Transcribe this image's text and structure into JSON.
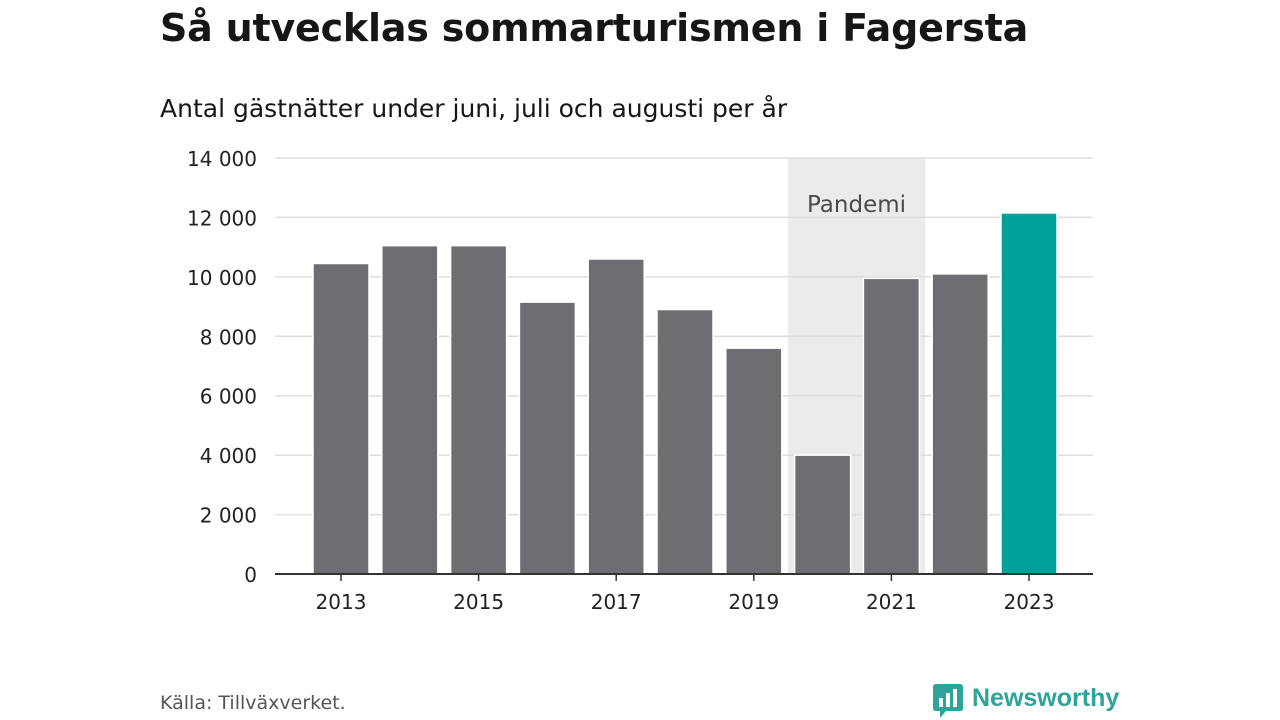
{
  "header": {
    "title": "Så utvecklas sommarturismen i Fagersta",
    "subtitle": "Antal gästnätter under juni, juli och augusti per år"
  },
  "footer": {
    "source": "Källa: Tillväxverket.",
    "brand_name": "Newsworthy",
    "brand_icon": "bar-chart-speech-bubble-icon"
  },
  "colors": {
    "bar_default": "#6e6d72",
    "bar_highlight": "#00a19a",
    "pandemic_band": "#ebebeb",
    "gridline": "#dddddd",
    "axis": "#333333",
    "brand": "#2ea39a"
  },
  "chart_data": {
    "type": "bar",
    "title": "Så utvecklas sommarturismen i Fagersta",
    "subtitle": "Antal gästnätter under juni, juli och augusti per år",
    "xlabel": "",
    "ylabel": "",
    "categories": [
      "2013",
      "2014",
      "2015",
      "2016",
      "2017",
      "2018",
      "2019",
      "2020",
      "2021",
      "2022",
      "2023"
    ],
    "values": [
      10450,
      11050,
      11050,
      9150,
      10600,
      8900,
      7600,
      4000,
      9950,
      10100,
      12150
    ],
    "highlight_category": "2023",
    "x_tick_labels": [
      "2013",
      "2015",
      "2017",
      "2019",
      "2021",
      "2023"
    ],
    "y_ticks": [
      0,
      2000,
      4000,
      6000,
      8000,
      10000,
      12000,
      14000
    ],
    "y_tick_labels": [
      "0",
      "2 000",
      "4 000",
      "6 000",
      "8 000",
      "10 000",
      "12 000",
      "14 000"
    ],
    "ylim": [
      0,
      14000
    ],
    "grid": true,
    "annotations": [
      {
        "label": "Pandemi",
        "from": "2020",
        "to": "2021"
      }
    ]
  }
}
